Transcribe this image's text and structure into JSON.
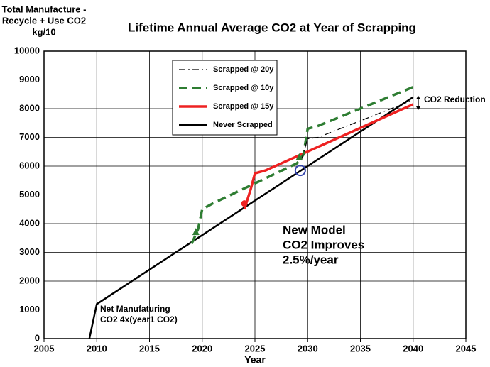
{
  "chart_data": {
    "type": "line",
    "title": "Lifetime Annual Average CO2 at Year of Scrapping",
    "y_label": [
      "Total Manufacture -",
      "Recycle + Use CO2",
      "kg/10"
    ],
    "x_label": "Year",
    "xlim": [
      2005,
      2045
    ],
    "xticks": [
      2005,
      2010,
      2015,
      2020,
      2025,
      2030,
      2035,
      2040,
      2045
    ],
    "ylim": [
      0,
      10000
    ],
    "yticks": [
      0,
      1000,
      2000,
      3000,
      4000,
      5000,
      6000,
      7000,
      8000,
      9000,
      10000
    ],
    "grid": true,
    "series": [
      {
        "name": "Scrapped @ 20y",
        "color": "#000000",
        "style": "dashdot",
        "width": 1.2,
        "x": [
          2029.4,
          2030,
          2031,
          2040
        ],
        "values": [
          6200,
          6950,
          7000,
          8300
        ]
      },
      {
        "name": "Scrapped @ 10y",
        "color": "#2e7d32",
        "style": "dash",
        "width": 3.5,
        "x": [
          2019,
          2019.6,
          2020,
          2021,
          2029,
          2029.6,
          2030,
          2031,
          2040
        ],
        "values": [
          3300,
          3800,
          4500,
          4700,
          6100,
          6400,
          7300,
          7400,
          8750
        ]
      },
      {
        "name": "Scrapped @ 15y",
        "color": "#ee2222",
        "style": "solid",
        "width": 3.5,
        "x": [
          2024,
          2024.6,
          2025,
          2026,
          2040
        ],
        "values": [
          4500,
          5200,
          5750,
          5850,
          8150
        ]
      },
      {
        "name": "Never Scrapped",
        "color": "#000000",
        "style": "solid",
        "width": 2.5,
        "x": [
          2009.3,
          2010,
          2040
        ],
        "values": [
          0,
          1200,
          8400
        ]
      }
    ],
    "markers": [
      {
        "x": 2024,
        "y": 4700,
        "shape": "circle",
        "color": "#ee2222"
      },
      {
        "x": 2019.4,
        "y": 3700,
        "shape": "triangle",
        "color": "#2e7d32"
      },
      {
        "x": 2029.2,
        "y": 6300,
        "shape": "triangle",
        "color": "#2e7d32"
      },
      {
        "x": 2029.3,
        "y": 5850,
        "shape": "ring",
        "color": "#3344aa"
      }
    ],
    "annotations": [
      {
        "text": [
          "CO2 Reduction"
        ]
      },
      {
        "text": [
          "New Model",
          "CO2 Improves",
          "2.5%/year"
        ]
      },
      {
        "text": [
          "Net Manufaturing",
          "CO2 4x(year1 CO2)"
        ]
      }
    ]
  }
}
